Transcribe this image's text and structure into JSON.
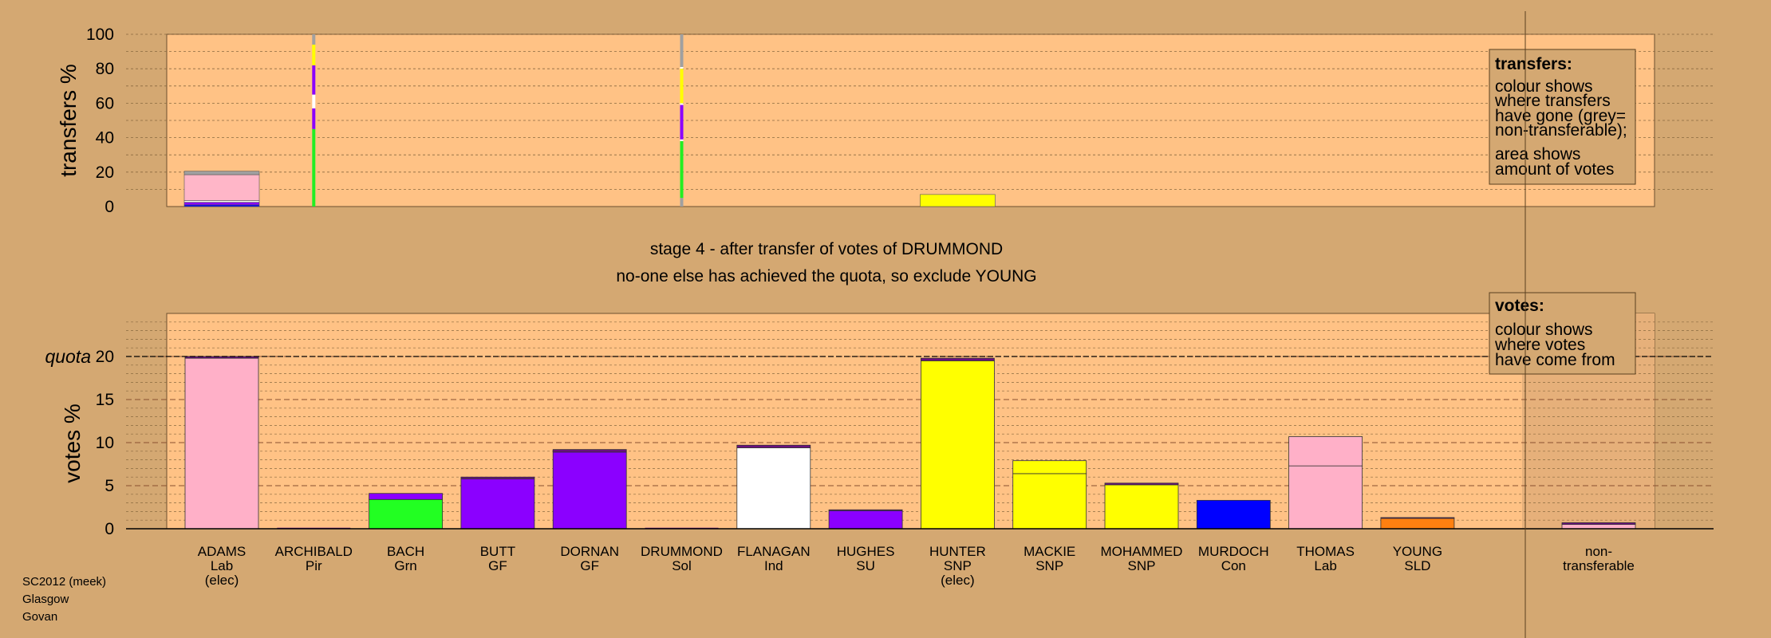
{
  "chart_data": [
    {
      "type": "bar",
      "panel": "transfers",
      "ylabel": "transfers %",
      "ylim": [
        0,
        100
      ],
      "yticks": [
        "0",
        "20",
        "40",
        "60",
        "80",
        "100"
      ],
      "categories": [
        "ADAMS",
        "ARCHIBALD",
        "BACH",
        "BUTT",
        "DORNAN",
        "DRUMMOND",
        "FLANAGAN",
        "HUGHES",
        "HUNTER",
        "MACKIE",
        "MOHAMMED",
        "MURDOCH",
        "THOMAS",
        "YOUNG"
      ],
      "bars": [
        {
          "candidate": "ADAMS",
          "width": "wide",
          "segments": [
            {
              "color": "#0000ff",
              "value": 1
            },
            {
              "color": "#8b00ff",
              "value": 1.5
            },
            {
              "color": "#ffffff",
              "value": 1
            },
            {
              "color": "#ffb6c8",
              "value": 15
            },
            {
              "color": "#a0a0a0",
              "value": 2
            }
          ]
        },
        {
          "candidate": "ARCHIBALD",
          "width": "thin",
          "segments": [
            {
              "color": "#22ee22",
              "value": 45
            },
            {
              "color": "#8b00ff",
              "value": 12
            },
            {
              "color": "#ffffff",
              "value": 8
            },
            {
              "color": "#8b00ff",
              "value": 17
            },
            {
              "color": "#ffff00",
              "value": 12
            },
            {
              "color": "#a0a0a0",
              "value": 6
            }
          ]
        },
        {
          "candidate": "DRUMMOND",
          "width": "thin",
          "segments": [
            {
              "color": "#a0a0a0",
              "value": 5
            },
            {
              "color": "#22ee22",
              "value": 33
            },
            {
              "color": "#ffffff",
              "value": 1
            },
            {
              "color": "#8b00ff",
              "value": 20
            },
            {
              "color": "#ffffff",
              "value": 1
            },
            {
              "color": "#ffff00",
              "value": 20
            },
            {
              "color": "#ffffff",
              "value": 1
            },
            {
              "color": "#a0a0a0",
              "value": 19
            }
          ]
        },
        {
          "candidate": "HUNTER",
          "width": "wide",
          "segments": [
            {
              "color": "#ffff00",
              "value": 7
            }
          ]
        }
      ]
    },
    {
      "type": "bar",
      "panel": "votes",
      "ylabel": "votes %",
      "ylim": [
        0,
        25
      ],
      "yticks": [
        "0",
        "5",
        "10",
        "15",
        "20"
      ],
      "quota": 20,
      "quota_label": "quota",
      "categories": [
        "ADAMS",
        "ARCHIBALD",
        "BACH",
        "BUTT",
        "DORNAN",
        "DRUMMOND",
        "FLANAGAN",
        "HUGHES",
        "HUNTER",
        "MACKIE",
        "MOHAMMED",
        "MURDOCH",
        "THOMAS",
        "YOUNG",
        "non-transferable"
      ],
      "bars": [
        {
          "candidate": "ADAMS",
          "segments": [
            {
              "color": "#ffb0c8",
              "value": 19.8
            },
            {
              "color": "#6a1080",
              "value": 0.2
            }
          ]
        },
        {
          "candidate": "ARCHIBALD",
          "segments": []
        },
        {
          "candidate": "BACH",
          "segments": [
            {
              "color": "#22ff22",
              "value": 3.4
            },
            {
              "color": "#8b00ff",
              "value": 0.7
            }
          ]
        },
        {
          "candidate": "BUTT",
          "segments": [
            {
              "color": "#8b00ff",
              "value": 5.8
            },
            {
              "color": "#6a1080",
              "value": 0.2
            }
          ]
        },
        {
          "candidate": "DORNAN",
          "segments": [
            {
              "color": "#8b00ff",
              "value": 8.9
            },
            {
              "color": "#6a1080",
              "value": 0.3
            }
          ]
        },
        {
          "candidate": "DRUMMOND",
          "segments": []
        },
        {
          "candidate": "FLANAGAN",
          "segments": [
            {
              "color": "#ffffff",
              "value": 9.4
            },
            {
              "color": "#6a1080",
              "value": 0.3
            }
          ]
        },
        {
          "candidate": "HUGHES",
          "segments": [
            {
              "color": "#8b00ff",
              "value": 2.1
            },
            {
              "color": "#6a1080",
              "value": 0.1
            }
          ]
        },
        {
          "candidate": "HUNTER",
          "segments": [
            {
              "color": "#ffff00",
              "value": 19.5
            },
            {
              "color": "#6a1080",
              "value": 0.3
            }
          ]
        },
        {
          "candidate": "MACKIE",
          "segments": [
            {
              "color": "#ffff00",
              "value": 6.4
            },
            {
              "color": "#ffff00",
              "value": 1.5
            }
          ]
        },
        {
          "candidate": "MOHAMMED",
          "segments": [
            {
              "color": "#ffff00",
              "value": 5.1
            },
            {
              "color": "#6a1080",
              "value": 0.2
            }
          ]
        },
        {
          "candidate": "MURDOCH",
          "segments": [
            {
              "color": "#0000ff",
              "value": 3.3
            }
          ]
        },
        {
          "candidate": "THOMAS",
          "segments": [
            {
              "color": "#ffb0c8",
              "value": 7.3
            },
            {
              "color": "#ffb0c8",
              "value": 3.4
            }
          ]
        },
        {
          "candidate": "YOUNG",
          "segments": [
            {
              "color": "#ff8010",
              "value": 1.2
            },
            {
              "color": "#6a1080",
              "value": 0.1
            }
          ]
        },
        {
          "candidate": "non-transferable",
          "segments": [
            {
              "color": "#ffb0c8",
              "value": 0.5
            },
            {
              "color": "#6a1080",
              "value": 0.2
            }
          ]
        }
      ]
    }
  ],
  "candidates": [
    {
      "name": "ADAMS",
      "party": "Lab",
      "note": "(elec)"
    },
    {
      "name": "ARCHIBALD",
      "party": "Pir",
      "note": ""
    },
    {
      "name": "BACH",
      "party": "Grn",
      "note": ""
    },
    {
      "name": "BUTT",
      "party": "GF",
      "note": ""
    },
    {
      "name": "DORNAN",
      "party": "GF",
      "note": ""
    },
    {
      "name": "DRUMMOND",
      "party": "Sol",
      "note": ""
    },
    {
      "name": "FLANAGAN",
      "party": "Ind",
      "note": ""
    },
    {
      "name": "HUGHES",
      "party": "SU",
      "note": ""
    },
    {
      "name": "HUNTER",
      "party": "SNP",
      "note": "(elec)"
    },
    {
      "name": "MACKIE",
      "party": "SNP",
      "note": ""
    },
    {
      "name": "MOHAMMED",
      "party": "SNP",
      "note": ""
    },
    {
      "name": "MURDOCH",
      "party": "Con",
      "note": ""
    },
    {
      "name": "THOMAS",
      "party": "Lab",
      "note": ""
    },
    {
      "name": "YOUNG",
      "party": "SLD",
      "note": ""
    }
  ],
  "nontransferable": {
    "line1": "non-",
    "line2": "transferable"
  },
  "stage": {
    "line1": "stage 4 - after transfer of votes of DRUMMOND",
    "line2": "no-one else has achieved the quota, so exclude YOUNG"
  },
  "legend_transfers": {
    "heading": "transfers:",
    "lines1": [
      "colour shows",
      "where transfers",
      "have gone (grey=",
      "non-transferable);"
    ],
    "lines2": [
      "area shows",
      "amount of votes"
    ]
  },
  "legend_votes": {
    "heading": "votes:",
    "lines": [
      "colour shows",
      "where votes",
      "have come from"
    ]
  },
  "footer": [
    "SC2012 (meek)",
    "Glasgow",
    "Govan"
  ]
}
